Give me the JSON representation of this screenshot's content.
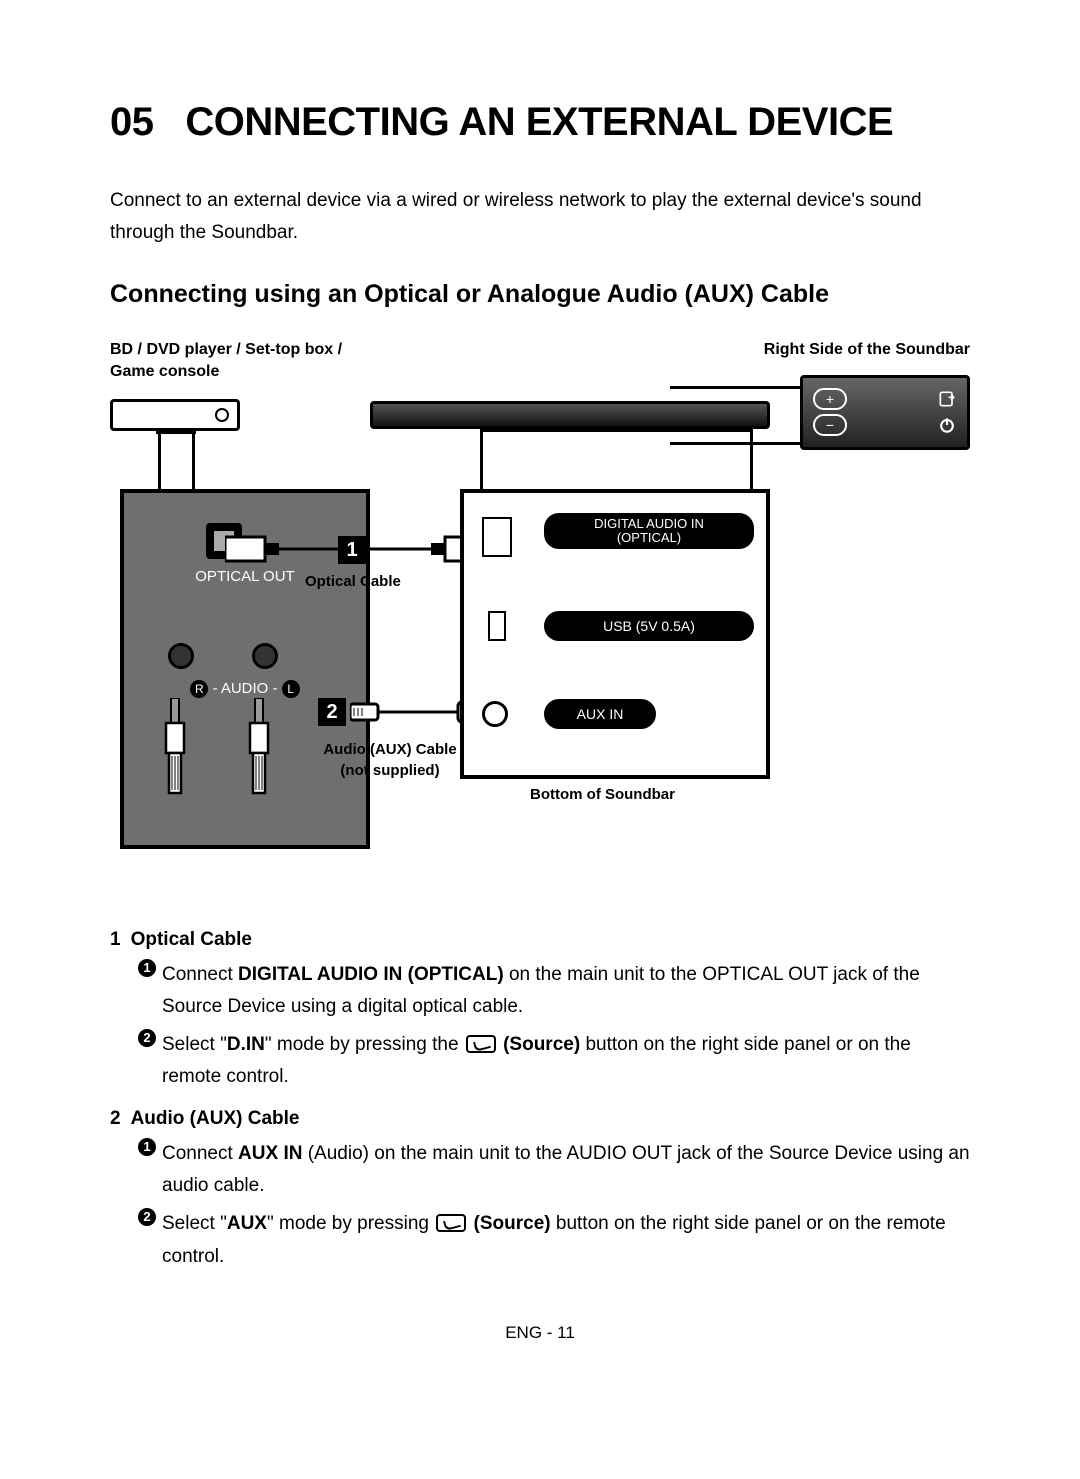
{
  "chapter": "05",
  "title": "CONNECTING AN EXTERNAL DEVICE",
  "intro": "Connect to an external device via a wired or wireless network to play the external device's sound through the Soundbar.",
  "section_heading": "Connecting using an Optical or Analogue Audio (AUX) Cable",
  "diagram": {
    "src_device_label": "BD / DVD player / Set-top box / Game console",
    "right_side_label": "Right Side of the Soundbar",
    "optical_out": "OPTICAL OUT",
    "audio_rl": "R - AUDIO - L",
    "badge1": "1",
    "badge2": "2",
    "optical_cable": "Optical Cable",
    "aux_cable_line1": "Audio (AUX) Cable",
    "aux_cable_line2": "(not supplied)",
    "bottom_label": "Bottom of Soundbar",
    "port_digital": "DIGITAL AUDIO IN (OPTICAL)",
    "port_usb": "USB (5V 0.5A)",
    "port_aux": "AUX IN",
    "vol_plus": "+",
    "vol_minus": "−",
    "colors": {
      "panel_gray": "#6f6f6f",
      "soundbar_dark": "#222222",
      "pill_bg": "#000000",
      "pill_fg": "#ffffff"
    }
  },
  "steps": [
    {
      "num": "1",
      "title": "Optical Cable",
      "items": [
        {
          "n": "1",
          "pre": "Connect ",
          "strong": "DIGITAL AUDIO IN (OPTICAL)",
          "post": " on the main unit to the OPTICAL OUT jack of the Source Device using a digital optical cable."
        },
        {
          "n": "2",
          "pre": "Select \"",
          "strong": "D.IN",
          "mid": "\" mode by pressing the ",
          "icon": true,
          "strong2": "(Source)",
          "post": " button on the right side panel or on the remote control."
        }
      ]
    },
    {
      "num": "2",
      "title": "Audio (AUX) Cable",
      "items": [
        {
          "n": "1",
          "pre": "Connect ",
          "strong": "AUX IN",
          "post": " (Audio) on the main unit to the AUDIO OUT jack of the Source Device using an audio cable."
        },
        {
          "n": "2",
          "pre": "Select \"",
          "strong": "AUX",
          "mid": "\" mode by pressing ",
          "icon": true,
          "strong2": "(Source)",
          "post": " button on the right side panel or on the remote control."
        }
      ]
    }
  ],
  "footer": "ENG - 11"
}
